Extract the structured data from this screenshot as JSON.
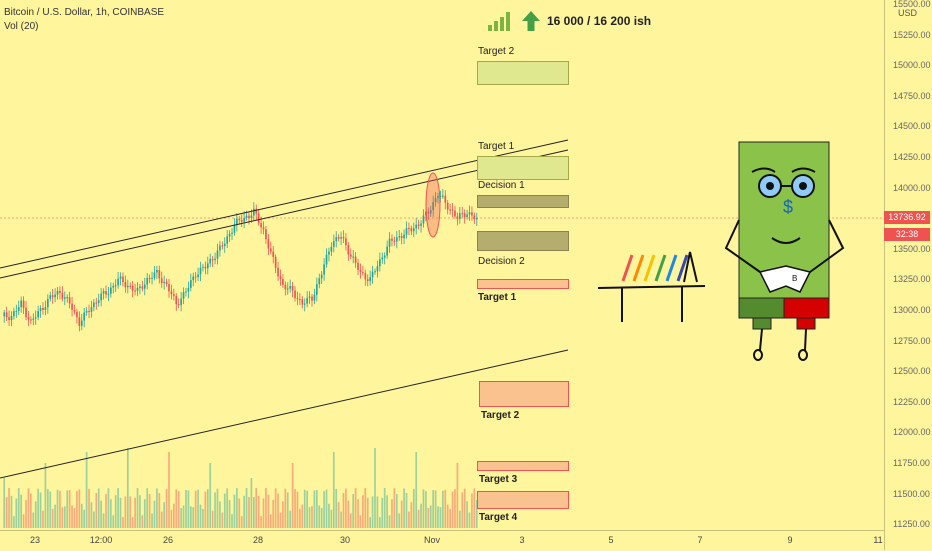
{
  "header": {
    "symbol": "Bitcoin / U.S. Dollar, 1h, COINBASE",
    "indicator": "Vol (20)"
  },
  "signal": {
    "text": "16 000 / 16 200 ish",
    "icons": [
      "signal-bars-icon",
      "up-arrow-icon"
    ]
  },
  "annotations": {
    "upper_target_2": "Target 2",
    "upper_target_1": "Target 1",
    "decision_1": "Decision 1",
    "decision_2": "Decision 2",
    "lower_target_1": "Target 1",
    "lower_target_2": "Target 2",
    "lower_target_3": "Target 3",
    "lower_target_4": "Target 4"
  },
  "price_axis": {
    "currency": "USD",
    "ticks": [
      "15500.00",
      "15250.00",
      "15000.00",
      "14750.00",
      "14500.00",
      "14250.00",
      "14000.00",
      "13750.00",
      "13500.00",
      "13250.00",
      "13000.00",
      "12750.00",
      "12500.00",
      "12250.00",
      "12000.00",
      "11750.00",
      "11500.00",
      "11250.00"
    ],
    "current_price": "13736.92",
    "countdown": "32:38"
  },
  "time_axis": {
    "ticks": [
      "23",
      "12:00",
      "26",
      "28",
      "30",
      "Nov",
      "3",
      "5",
      "7",
      "9",
      "11"
    ]
  },
  "colors": {
    "background": "#fff59d",
    "up": "#26a69a",
    "down": "#ef5350",
    "decision_zone": "#b5ad6e",
    "target_up_zone": "#dfe88f",
    "target_down_zone": "#f9c28e"
  },
  "chart_data": {
    "type": "candlestick",
    "symbol": "BTCUSD",
    "timeframe": "1h",
    "ylim": [
      11250,
      15500
    ],
    "current_price": 13736.92,
    "closes_approx": [
      12950,
      13050,
      12900,
      13000,
      13100,
      13150,
      13050,
      12900,
      13000,
      13100,
      13150,
      13250,
      13200,
      13150,
      13250,
      13300,
      13200,
      13050,
      13150,
      13300,
      13350,
      13450,
      13550,
      13700,
      13750,
      13800,
      13650,
      13400,
      13200,
      13150,
      13050,
      13100,
      13300,
      13550,
      13600,
      13450,
      13300,
      13250,
      13400,
      13550,
      13600,
      13650,
      13700,
      13800,
      13950,
      13850,
      13750,
      13800,
      13736
    ]
  }
}
